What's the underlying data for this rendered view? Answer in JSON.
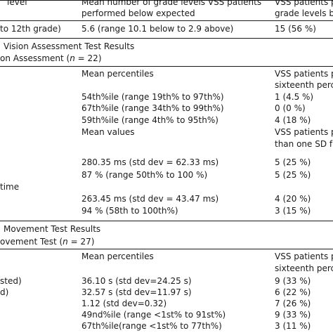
{
  "header": {
    "col1": "level",
    "col2_line1": "Mean number of grade levels VSS patients",
    "col2_line2": "performed below expected",
    "col3_line1": "VSS patients per",
    "col3_line2": "grade levels be"
  },
  "grade_row": {
    "label": "to 12th grade)",
    "mean": "5.6 (range 10.1 below to 2.9 above)",
    "vss": "15 (56 %)"
  },
  "vision_section": {
    "title": "Vision Assessment Test Results",
    "subtitle_prefix": "on Assessment (",
    "n_label": "n",
    "n_value": " = 22)"
  },
  "vision_percentile_header": {
    "mean": "Mean percentiles",
    "vss_line1": "VSS patients pe",
    "vss_line2": "sixteenth perce"
  },
  "vision_percentile_rows": [
    {
      "mean": "54th%ile (range 19th% to 97th%)",
      "vss": "1 (4.5 %)"
    },
    {
      "mean": "67th%ile (range 34th% to 99th%)",
      "vss": "0 (0 %)"
    },
    {
      "mean": "59th%ile (range 4th% to 95th%)",
      "vss": "4 (18 %)"
    }
  ],
  "vision_values_header": {
    "mean": "Mean values",
    "vss_line1": "VSS patients pe",
    "vss_line2": "than one SD fro"
  },
  "vision_value_rows_a": [
    {
      "mean": "280.35 ms (std dev = 62.33 ms)",
      "vss": "5 (25 %)"
    },
    {
      "mean": "87 % (range 50th% to 100 %)",
      "vss": "5 (25 %)"
    }
  ],
  "time_label": "time",
  "vision_value_rows_b": [
    {
      "mean": "263.45 ms (std dev = 43.47 ms)",
      "vss": "4 (20 %)"
    },
    {
      "mean": "94 % (58th to 100th%)",
      "vss": "3 (15 %)"
    }
  ],
  "eye_section": {
    "title": "Movement Test Results",
    "subtitle_prefix": "ovement Test (",
    "n_label": "n",
    "n_value": " = 27)"
  },
  "eye_header": {
    "mean": "Mean percentiles",
    "vss_line1": "VSS patients pe",
    "vss_line2": "sixteenth perce"
  },
  "eye_rows": [
    {
      "label": "sted)",
      "mean": "36.10 s (std dev=24.25 s)",
      "vss": "9 (33 %)"
    },
    {
      "label": "d)",
      "mean": "32.57 s (std dev=11.97 s)",
      "vss": "6 (22 %)"
    },
    {
      "label": "",
      "mean": "1.12 (std dev=0.32)",
      "vss": "7 (26 %)"
    },
    {
      "label": "",
      "mean": "49nd%ile (range <1st% to 91st%)",
      "vss": "9 (33 %)"
    },
    {
      "label": "",
      "mean": "67th%ile(range <1st% to 77th%)",
      "vss": "3 (11 %)"
    }
  ]
}
